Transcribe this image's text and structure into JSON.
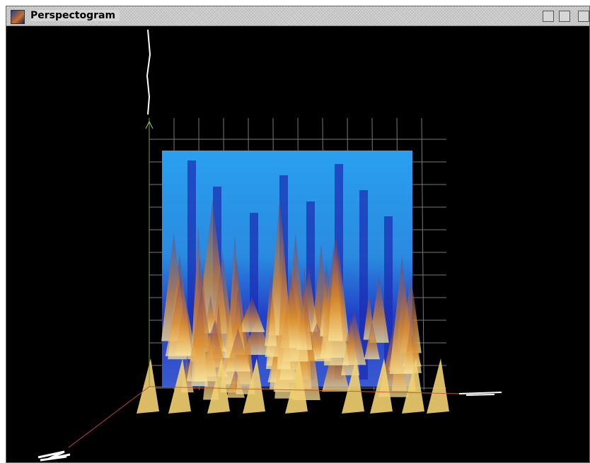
{
  "window": {
    "title": "Perspectogram"
  }
}
